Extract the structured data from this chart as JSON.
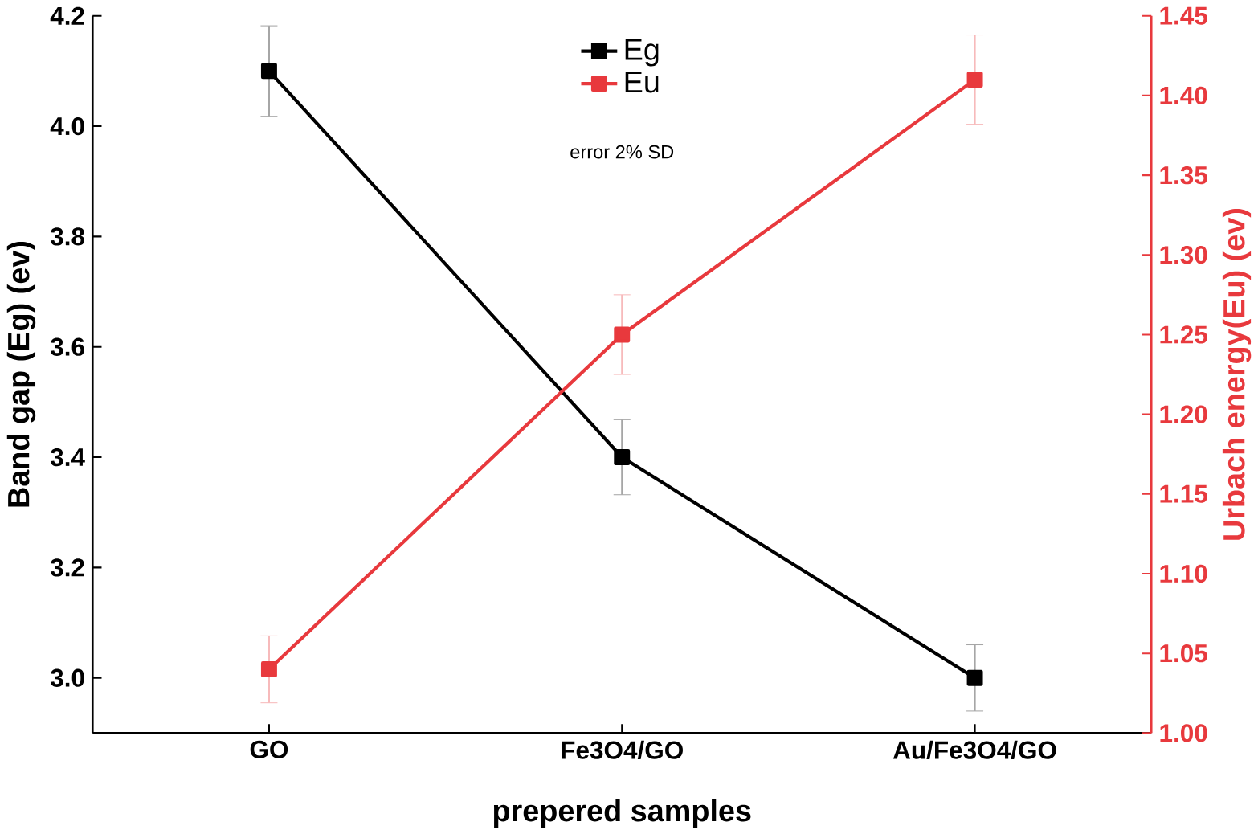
{
  "chart_data": {
    "type": "line",
    "xlabel": "prepered samples",
    "ylabel": "Band gap (Eg) (ev)",
    "y2label": "Urbach energy(Eu) (ev)",
    "categories": [
      "GO",
      "Fe3O4/GO",
      "Au/Fe3O4/GO"
    ],
    "series": [
      {
        "name": "Eg",
        "color": "#000000",
        "values": [
          4.1,
          3.4,
          3.0
        ],
        "errors": [
          0.082,
          0.068,
          0.06
        ]
      },
      {
        "name": "Eu",
        "color": "#e8393d",
        "axis": "y2",
        "values": [
          1.04,
          1.25,
          1.41
        ],
        "errors": [
          0.021,
          0.025,
          0.028
        ]
      }
    ],
    "ylim": [
      2.9,
      4.2
    ],
    "yticks": [
      {
        "value": 3.0,
        "label": "3.0"
      },
      {
        "value": 3.2,
        "label": "3.2"
      },
      {
        "value": 3.4,
        "label": "3.4"
      },
      {
        "value": 3.6,
        "label": "3.6"
      },
      {
        "value": 3.8,
        "label": "3.8"
      },
      {
        "value": 4.0,
        "label": "4.0"
      },
      {
        "value": 4.2,
        "label": "4.2"
      }
    ],
    "y2lim": [
      1.0,
      1.45
    ],
    "y2ticks": [
      {
        "value": 1.0,
        "label": "1.00"
      },
      {
        "value": 1.05,
        "label": "1.05"
      },
      {
        "value": 1.1,
        "label": "1.10"
      },
      {
        "value": 1.15,
        "label": "1.15"
      },
      {
        "value": 1.2,
        "label": "1.20"
      },
      {
        "value": 1.25,
        "label": "1.25"
      },
      {
        "value": 1.3,
        "label": "1.30"
      },
      {
        "value": 1.35,
        "label": "1.35"
      },
      {
        "value": 1.4,
        "label": "1.40"
      },
      {
        "value": 1.45,
        "label": "1.45"
      }
    ],
    "annotations": [
      "error 2% SD"
    ],
    "legend": "top",
    "marker": "square",
    "line_style": "solid",
    "grid": false
  }
}
